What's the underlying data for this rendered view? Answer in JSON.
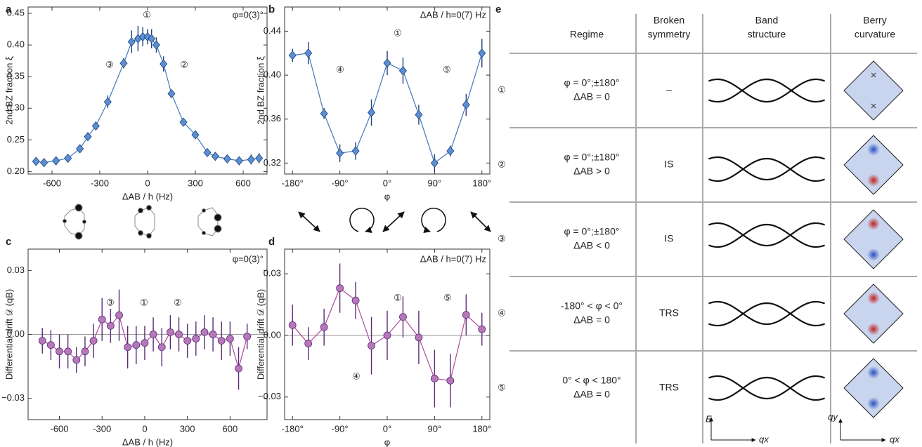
{
  "chart_data": [
    {
      "type": "line",
      "panel": "a",
      "marker": "diamond",
      "color": "#3f78b8",
      "marker_color": "#5b8fd4",
      "error_color": "#1f3f78",
      "xlabel": "ΔAB / h (Hz)",
      "ylabel": "2nd BZ fraction ξ",
      "x": [
        -700,
        -650,
        -575,
        -500,
        -425,
        -375,
        -325,
        -250,
        -150,
        -100,
        -60,
        -30,
        0,
        25,
        55,
        100,
        150,
        225,
        300,
        375,
        425,
        500,
        575,
        650,
        700
      ],
      "values": [
        0.216,
        0.214,
        0.217,
        0.221,
        0.236,
        0.255,
        0.272,
        0.31,
        0.371,
        0.405,
        0.41,
        0.413,
        0.413,
        0.41,
        0.4,
        0.37,
        0.323,
        0.278,
        0.258,
        0.23,
        0.224,
        0.22,
        0.217,
        0.219,
        0.221
      ],
      "errors": [
        0.005,
        0.005,
        0.005,
        0.005,
        0.005,
        0.006,
        0.006,
        0.01,
        0.008,
        0.018,
        0.02,
        0.015,
        0.012,
        0.015,
        0.012,
        0.012,
        0.006,
        0.006,
        0.006,
        0.006,
        0.006,
        0.006,
        0.006,
        0.008,
        0.008
      ],
      "xlim": [
        -750,
        750
      ],
      "ylim": [
        0.196,
        0.46
      ],
      "xticks": [
        -600,
        -300,
        0,
        300,
        600
      ],
      "yticks": [
        {
          "value": 0.2,
          "label": "0.20"
        },
        0.25,
        {
          "value": 0.3,
          "label": "0.30"
        },
        0.35,
        {
          "value": 0.4,
          "label": "0.40"
        },
        0.45
      ],
      "note": "φ=0(3)°",
      "annotations": [
        "①",
        "②",
        "③"
      ]
    },
    {
      "type": "line",
      "panel": "b",
      "marker": "diamond",
      "color": "#3f78b8",
      "marker_color": "#5b8fd4",
      "error_color": "#1f3f78",
      "xlabel": "φ",
      "ylabel": "2nd BZ fraction ξ",
      "x": [
        -180,
        -150,
        -120,
        -90,
        -60,
        -30,
        0,
        30,
        60,
        90,
        120,
        150,
        180
      ],
      "values": [
        0.418,
        0.42,
        0.365,
        0.329,
        0.331,
        0.366,
        0.411,
        0.404,
        0.364,
        0.32,
        0.331,
        0.373,
        0.42
      ],
      "errors": [
        0.006,
        0.01,
        0.005,
        0.008,
        0.008,
        0.012,
        0.011,
        0.012,
        0.009,
        0.008,
        0.005,
        0.01,
        0.013
      ],
      "xlim": [
        -195,
        195
      ],
      "ylim": [
        0.31,
        0.462
      ],
      "xticks": [
        {
          "value": -180,
          "label": "-180°"
        },
        {
          "value": -90,
          "label": "-90°"
        },
        {
          "value": 0,
          "label": "0°"
        },
        {
          "value": 90,
          "label": "90°"
        },
        {
          "value": 180,
          "label": "180°"
        }
      ],
      "yticks": [
        0.32,
        0.36,
        {
          "value": 0.4,
          "label": "0.40"
        },
        0.44
      ],
      "note": "ΔAB / h=0(7) Hz",
      "annotations": [
        "①",
        "④",
        "⑤"
      ]
    },
    {
      "type": "line",
      "panel": "c",
      "marker": "circle",
      "color": "#b04a9a",
      "marker_color": "#b678b8",
      "error_color": "#5a2a78",
      "xlabel": "ΔAB / h (Hz)",
      "ylabel": "Differential drift 𝒟 (qB)",
      "x": [
        -720,
        -660,
        -600,
        -540,
        -480,
        -420,
        -360,
        -300,
        -240,
        -180,
        -120,
        -60,
        0,
        60,
        120,
        180,
        240,
        300,
        360,
        420,
        480,
        540,
        600,
        660,
        720
      ],
      "values": [
        -0.003,
        -0.005,
        -0.008,
        -0.008,
        -0.012,
        -0.008,
        -0.003,
        0.007,
        0.004,
        0.009,
        -0.006,
        -0.005,
        -0.004,
        0.0,
        -0.006,
        0.001,
        0.0,
        -0.003,
        -0.002,
        0.001,
        0.0,
        -0.003,
        -0.002,
        -0.016,
        -0.001
      ],
      "errors": [
        0.006,
        0.007,
        0.008,
        0.008,
        0.006,
        0.007,
        0.008,
        0.01,
        0.008,
        0.012,
        0.01,
        0.009,
        0.008,
        0.008,
        0.009,
        0.008,
        0.008,
        0.008,
        0.008,
        0.008,
        0.008,
        0.009,
        0.008,
        0.01,
        0.006
      ],
      "xlim": [
        -820,
        860
      ],
      "ylim": [
        -0.04,
        0.04
      ],
      "xticks": [
        -600,
        -300,
        0,
        300,
        600
      ],
      "yticks": [
        {
          "value": -0.03,
          "label": "−0.03"
        },
        {
          "value": 0,
          "label": "0.00"
        },
        0.03
      ],
      "note": "φ=0(3)°",
      "annotations": [
        "③",
        "①",
        "②"
      ]
    },
    {
      "type": "line",
      "panel": "d",
      "marker": "circle",
      "color": "#b04a9a",
      "marker_color": "#b678b8",
      "error_color": "#5a2a78",
      "xlabel": "φ",
      "ylabel": "Differential drift 𝒟 (qB)",
      "x": [
        -180,
        -150,
        -120,
        -90,
        -60,
        -30,
        0,
        30,
        60,
        90,
        120,
        150,
        180
      ],
      "values": [
        0.005,
        -0.004,
        0.004,
        0.023,
        0.017,
        -0.005,
        0.0,
        0.009,
        -0.001,
        -0.021,
        -0.022,
        0.01,
        0.003
      ],
      "errors": [
        0.01,
        0.008,
        0.009,
        0.012,
        0.009,
        0.014,
        0.012,
        0.01,
        0.013,
        0.014,
        0.013,
        0.01,
        0.008
      ],
      "xlim": [
        -195,
        195
      ],
      "ylim": [
        -0.041,
        0.042
      ],
      "xticks": [
        {
          "value": -180,
          "label": "-180°"
        },
        {
          "value": -90,
          "label": "-90°"
        },
        {
          "value": 0,
          "label": "0°"
        },
        {
          "value": 90,
          "label": "90°"
        },
        {
          "value": 180,
          "label": "180°"
        }
      ],
      "yticks": [
        {
          "value": -0.03,
          "label": "−0.03"
        },
        {
          "value": 0,
          "label": "0.00"
        },
        0.03
      ],
      "note": "ΔAB / h=0(7) Hz",
      "annotations": [
        "①",
        "⑤",
        "④"
      ]
    }
  ],
  "table": {
    "panel": "e",
    "header": [
      "Regime",
      [
        "Broken",
        "symmetry"
      ],
      [
        "Band",
        "structure"
      ],
      [
        "Berry",
        "curvature"
      ]
    ],
    "rows": [
      [
        "①",
        [
          "φ = 0°;±180°",
          "ΔAB = 0"
        ],
        "–"
      ],
      [
        "②",
        [
          "φ = 0°;±180°",
          "ΔAB > 0"
        ],
        "IS"
      ],
      [
        "③",
        [
          "φ = 0°;±180°",
          "ΔAB < 0"
        ],
        "IS"
      ],
      [
        "④",
        [
          "-180° < φ < 0°",
          "ΔAB = 0"
        ],
        "TRS"
      ],
      [
        "⑤",
        [
          "0° < φ < 180°",
          "ΔAB = 0"
        ],
        "TRS"
      ]
    ],
    "band_axes": [
      "E",
      "qx"
    ],
    "berry_axes": [
      "qy",
      "qx"
    ]
  }
}
